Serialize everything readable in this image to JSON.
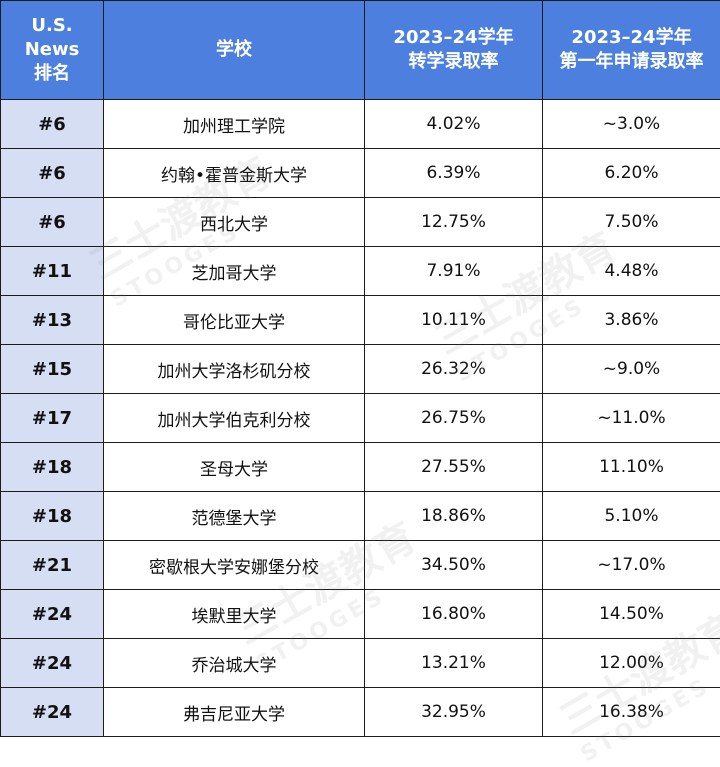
{
  "headers": {
    "rank": [
      "U.S.",
      "News",
      "排名"
    ],
    "school": "学校",
    "transfer": [
      "2023–24学年",
      "转学录取率"
    ],
    "firstyear": [
      "2023–24学年",
      "第一年申请录取率"
    ]
  },
  "rows": [
    {
      "rank": "#6",
      "school": "加州理工学院",
      "transfer": "4.02%",
      "firstyear": "~3.0%"
    },
    {
      "rank": "#6",
      "school": "约翰•霍普金斯大学",
      "transfer": "6.39%",
      "firstyear": "6.20%"
    },
    {
      "rank": "#6",
      "school": "西北大学",
      "transfer": "12.75%",
      "firstyear": "7.50%"
    },
    {
      "rank": "#11",
      "school": "芝加哥大学",
      "transfer": "7.91%",
      "firstyear": "4.48%"
    },
    {
      "rank": "#13",
      "school": "哥伦比亚大学",
      "transfer": "10.11%",
      "firstyear": "3.86%"
    },
    {
      "rank": "#15",
      "school": "加州大学洛杉矶分校",
      "transfer": "26.32%",
      "firstyear": "~9.0%"
    },
    {
      "rank": "#17",
      "school": "加州大学伯克利分校",
      "transfer": "26.75%",
      "firstyear": "~11.0%"
    },
    {
      "rank": "#18",
      "school": "圣母大学",
      "transfer": "27.55%",
      "firstyear": "11.10%"
    },
    {
      "rank": "#18",
      "school": "范德堡大学",
      "transfer": "18.86%",
      "firstyear": "5.10%"
    },
    {
      "rank": "#21",
      "school": "密歇根大学安娜堡分校",
      "transfer": "34.50%",
      "firstyear": "~17.0%"
    },
    {
      "rank": "#24",
      "school": "埃默里大学",
      "transfer": "16.80%",
      "firstyear": "14.50%"
    },
    {
      "rank": "#24",
      "school": "乔治城大学",
      "transfer": "13.21%",
      "firstyear": "12.00%"
    },
    {
      "rank": "#24",
      "school": "弗吉尼亚大学",
      "transfer": "32.95%",
      "firstyear": "16.38%"
    }
  ],
  "watermark": {
    "cn": "三士渡教育",
    "en": "STOOGES"
  }
}
